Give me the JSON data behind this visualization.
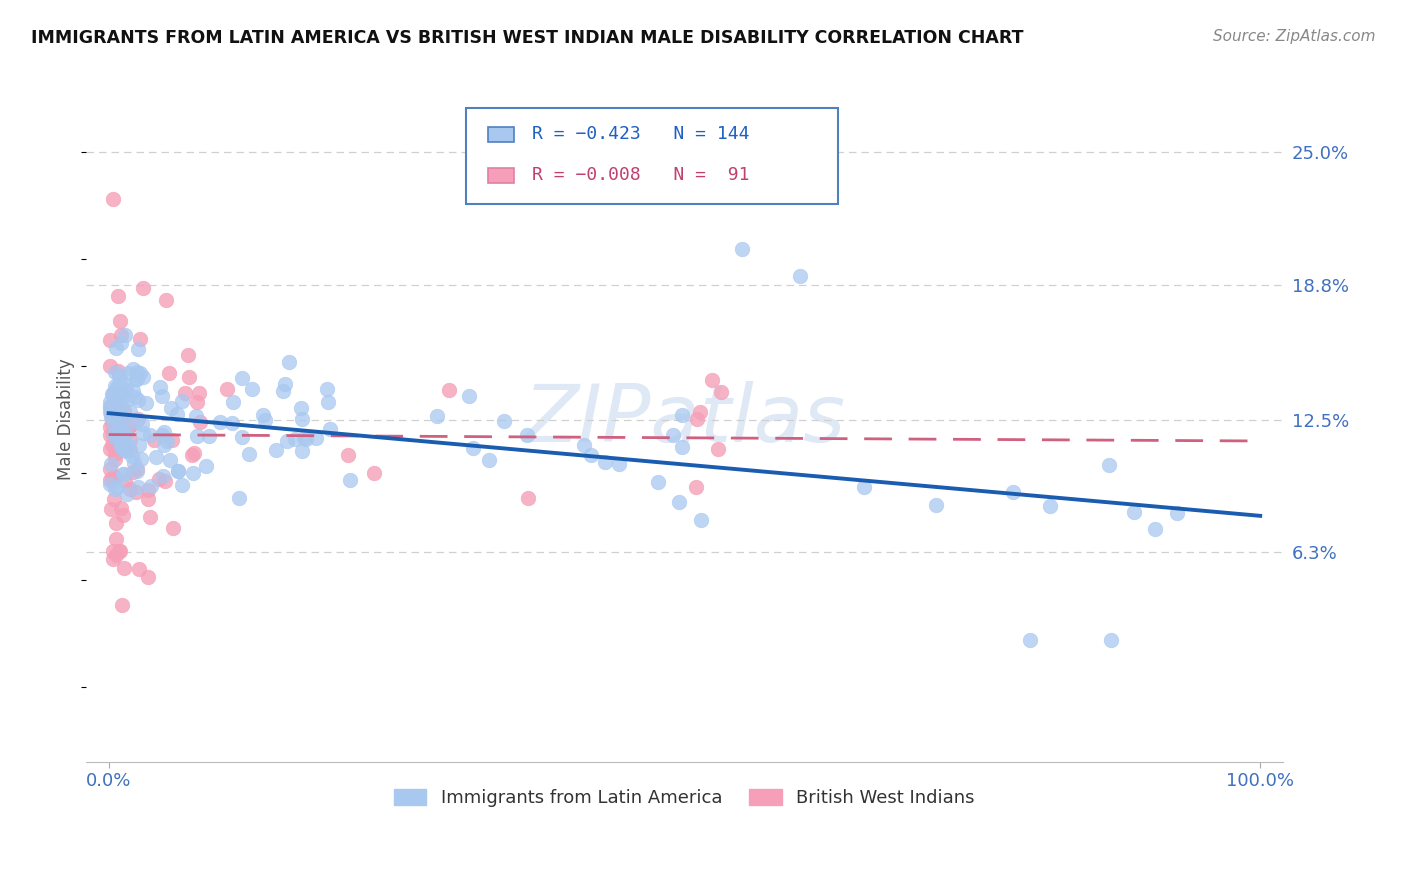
{
  "title": "IMMIGRANTS FROM LATIN AMERICA VS BRITISH WEST INDIAN MALE DISABILITY CORRELATION CHART",
  "source": "Source: ZipAtlas.com",
  "ylabel": "Male Disability",
  "xlim": [
    -0.02,
    1.02
  ],
  "ylim": [
    -0.035,
    0.285
  ],
  "xticks": [
    0.0,
    1.0
  ],
  "xticklabels": [
    "0.0%",
    "100.0%"
  ],
  "ytick_values": [
    0.063,
    0.125,
    0.188,
    0.25
  ],
  "ytick_labels": [
    "6.3%",
    "12.5%",
    "18.8%",
    "25.0%"
  ],
  "scatter_color_latin": "#a8c8f0",
  "scatter_color_bwi": "#f5a0b8",
  "trendline_color_latin": "#1a5cb0",
  "trendline_color_bwi": "#d06080",
  "watermark": "ZIPatlas",
  "background_color": "#ffffff",
  "grid_color": "#d0d0d0",
  "legend_box_color": "#5080c0",
  "legend_text_blue": "#2060c0",
  "legend_text_pink": "#c04070",
  "right_label_color": "#4070c0",
  "title_color": "#111111",
  "source_color": "#888888",
  "ylabel_color": "#555555"
}
